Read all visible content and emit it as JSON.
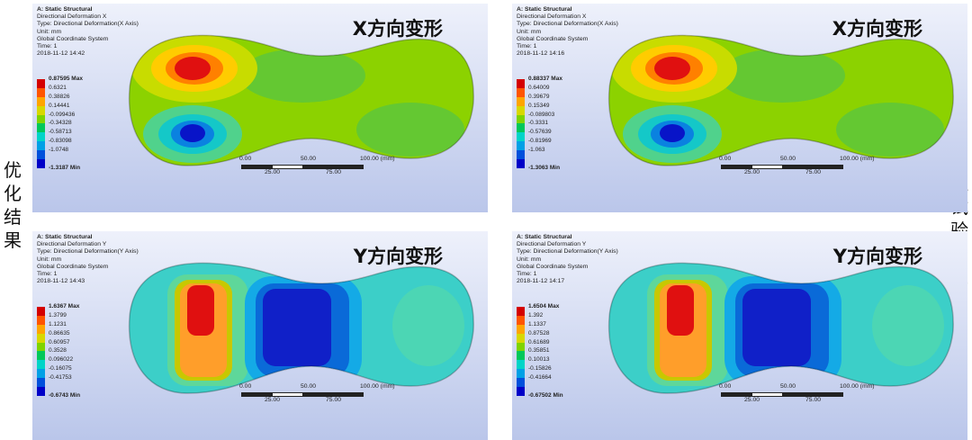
{
  "side_labels": {
    "left": "优化结果",
    "right": "虚拟试验结果"
  },
  "panels": [
    {
      "info": [
        "A: Static Structural",
        "Directional Deformation X",
        "Type: Directional Deformation(X Axis)",
        "Unit: mm",
        "Global Coordinate System",
        "Time: 1",
        "2018-11-12 14:42"
      ],
      "heading": "X方向变形",
      "legend": {
        "max": "0.87595 Max",
        "values": [
          "0.6321",
          "0.38826",
          "0.14441",
          "-0.099436",
          "-0.34328",
          "-0.58713",
          "-0.83098",
          "-1.0748"
        ],
        "min": "-1.3187 Min"
      },
      "kind": "x"
    },
    {
      "info": [
        "A: Static Structural",
        "Directional Deformation X",
        "Type: Directional Deformation(X Axis)",
        "Unit: mm",
        "Global Coordinate System",
        "Time: 1",
        "2018-11-12 14:16"
      ],
      "heading": "X方向变形",
      "legend": {
        "max": "0.88337 Max",
        "values": [
          "0.64009",
          "0.39679",
          "0.15349",
          "-0.089803",
          "-0.3331",
          "-0.57639",
          "-0.81969",
          "-1.063"
        ],
        "min": "-1.3063 Min"
      },
      "kind": "x"
    },
    {
      "info": [
        "A: Static Structural",
        "Directional Deformation Y",
        "Type: Directional Deformation(Y Axis)",
        "Unit: mm",
        "Global Coordinate System",
        "Time: 1",
        "2018-11-12 14:43"
      ],
      "heading": "Y方向变形",
      "legend": {
        "max": "1.6367 Max",
        "values": [
          "1.3799",
          "1.1231",
          "0.86635",
          "0.60957",
          "0.3528",
          "0.096022",
          "-0.16075",
          "-0.41753"
        ],
        "min": "-0.6743 Min"
      },
      "kind": "y"
    },
    {
      "info": [
        "A: Static Structural",
        "Directional Deformation Y",
        "Type: Directional Deformation(Y Axis)",
        "Unit: mm",
        "Global Coordinate System",
        "Time: 1",
        "2018-11-12 14:17"
      ],
      "heading": "Y方向变形",
      "legend": {
        "max": "1.6504 Max",
        "values": [
          "1.392",
          "1.1337",
          "0.87528",
          "0.61689",
          "0.35851",
          "0.10013",
          "-0.15826",
          "-0.41664"
        ],
        "min": "-0.67502 Min"
      },
      "kind": "y"
    }
  ],
  "scale": {
    "top": [
      "0.00",
      "50.00",
      "100.00 (mm)"
    ],
    "bottom": [
      "25.00",
      "75.00"
    ]
  },
  "colors": {
    "legend": [
      "#d40000",
      "#ff5500",
      "#ffa500",
      "#d8d800",
      "#7fd400",
      "#00c85a",
      "#00d4c8",
      "#00a0e6",
      "#0050dc",
      "#0000c8"
    ]
  }
}
